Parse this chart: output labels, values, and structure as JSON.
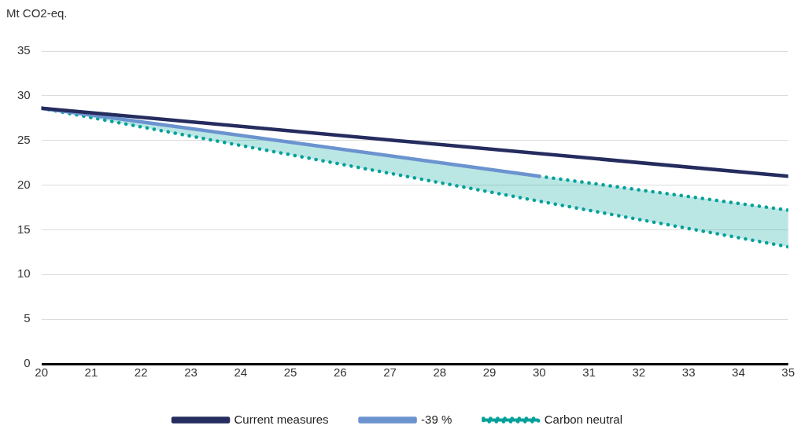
{
  "chart_data": {
    "type": "line",
    "ylabel": "Mt CO2-eq.",
    "xlim": [
      20,
      35
    ],
    "xticks": [
      20,
      21,
      22,
      23,
      24,
      25,
      26,
      27,
      28,
      29,
      30,
      31,
      32,
      33,
      34,
      35
    ],
    "ylim": [
      0,
      35
    ],
    "yticks": [
      0,
      5,
      10,
      15,
      20,
      25,
      30,
      35
    ],
    "grid": "y",
    "legend": "bottom",
    "marker": "none",
    "series": [
      {
        "name": "Current measures",
        "color": "#252c5e",
        "x": [
          20,
          35
        ],
        "values": [
          28.6,
          21
        ],
        "line_style": "solid"
      },
      {
        "name": "-39 %",
        "color": "#6b93cf",
        "x": [
          20,
          30
        ],
        "values": [
          28.6,
          21
        ],
        "line_style": "solid"
      },
      {
        "name": "Carbon neutral",
        "color": "#00a19a",
        "x": [
          20,
          30,
          35
        ],
        "values": [
          28.6,
          18.2,
          13.1
        ],
        "line_style": "dotted",
        "lower": [
          28.6,
          18.2,
          13.1
        ],
        "upper": [
          28.6,
          21,
          17.2
        ]
      },
      {
        "color": "#00a19a",
        "x": [
          30,
          35
        ],
        "values": [
          21,
          17.2
        ],
        "line_style": "dotted"
      }
    ]
  }
}
